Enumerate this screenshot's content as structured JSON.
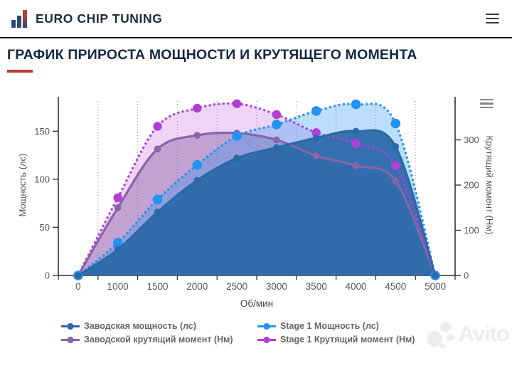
{
  "header": {
    "brand": "EURO CHIP TUNING",
    "menu_icon": "hamburger",
    "brand_color": "#1e2b3d",
    "accent_red": "#c13b33"
  },
  "title": {
    "text": "ГРАФИК ПРИРОСТА МОЩНОСТИ И КРУТЯЩЕГО МОМЕНТА",
    "underline_color": "#c13b33"
  },
  "chart_data": {
    "type": "area",
    "x_categories": [
      "0",
      "1000",
      "1500",
      "2000",
      "2500",
      "3000",
      "3500",
      "4000",
      "4500",
      "5000"
    ],
    "xlabel": "Об/мин",
    "ylabel_left": "Мощность (лс)",
    "ylabel_right": "Крутящий момент (Нм)",
    "y_left_ticks": [
      0,
      50,
      100,
      150
    ],
    "y_right_ticks": [
      0,
      100,
      200,
      300
    ],
    "ylim_left": [
      0,
      188
    ],
    "ylim_right": [
      0,
      400
    ],
    "grid": "vertical-dotted",
    "legend_position": "bottom",
    "context_menu_icon": "hamburger",
    "series": [
      {
        "name": "Заводская мощность (лс)",
        "axis": "left",
        "line": "solid",
        "color": "#2a69a9",
        "fill": "rgba(42,105,169,0.93)",
        "values": [
          0,
          27,
          66,
          99,
          122,
          133,
          143,
          150,
          134,
          0
        ]
      },
      {
        "name": "Stage 1 Мощность (лс)",
        "axis": "left",
        "line": "dotted",
        "color": "#2492f0",
        "fill": "rgba(36,146,240,0.30)",
        "values": [
          0,
          34,
          79,
          115,
          145,
          157,
          171,
          178,
          158,
          0
        ]
      },
      {
        "name": "Заводской крутящий момент (Нм)",
        "axis": "right",
        "line": "solid",
        "color": "#8a63a8",
        "fill": "rgba(138,99,168,0.45)",
        "values": [
          0,
          150,
          280,
          310,
          315,
          300,
          265,
          243,
          209,
          0
        ]
      },
      {
        "name": "Stage 1 Крутящий момент (Нм)",
        "axis": "right",
        "line": "dotted",
        "color": "#b13fd6",
        "fill": "rgba(177,63,214,0.22)",
        "values": [
          0,
          172,
          330,
          370,
          380,
          356,
          316,
          292,
          243,
          0
        ]
      }
    ]
  },
  "watermark": {
    "text": "Avito"
  }
}
